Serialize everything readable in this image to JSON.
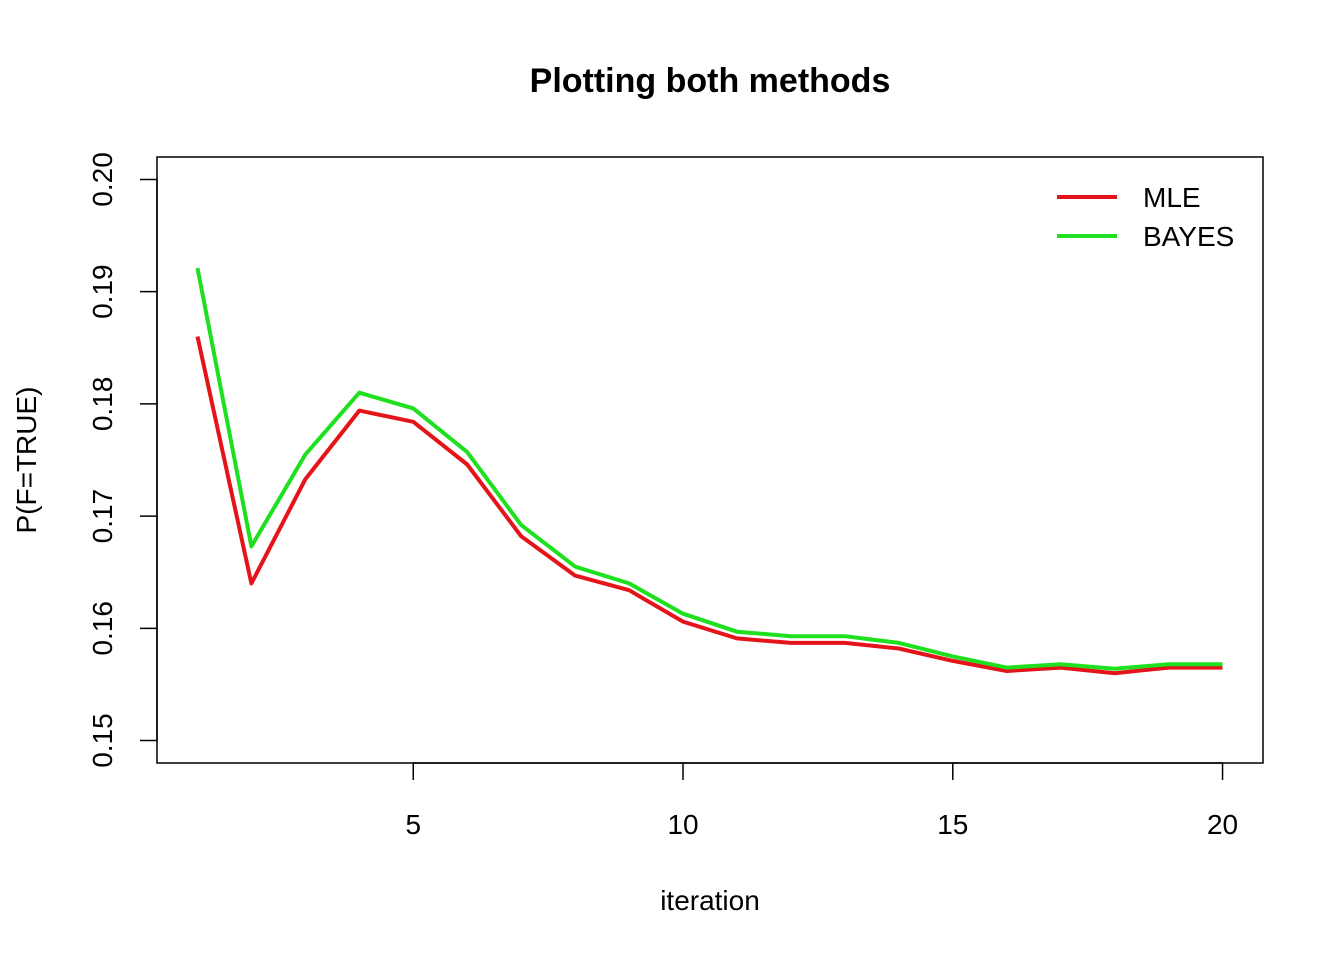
{
  "chart_data": {
    "type": "line",
    "title": "Plotting both methods",
    "xlabel": "iteration",
    "ylabel": "P(F=TRUE)",
    "xlim": [
      0.25,
      20.75
    ],
    "ylim": [
      0.148,
      0.202
    ],
    "x_ticks": [
      5,
      10,
      15,
      20
    ],
    "y_ticks": [
      0.15,
      0.16,
      0.17,
      0.18,
      0.19,
      0.2
    ],
    "x_tick_labels": [
      "5",
      "10",
      "15",
      "20"
    ],
    "y_tick_labels": [
      "0.15",
      "0.16",
      "0.17",
      "0.18",
      "0.19",
      "0.20"
    ],
    "x": [
      1,
      2,
      3,
      4,
      5,
      6,
      7,
      8,
      9,
      10,
      11,
      12,
      13,
      14,
      15,
      16,
      17,
      18,
      19,
      20
    ],
    "series": [
      {
        "name": "MLE",
        "color": "#e5141b",
        "values": [
          0.186,
          0.164,
          0.1733,
          0.1794,
          0.1784,
          0.1746,
          0.1682,
          0.1647,
          0.1634,
          0.1606,
          0.1591,
          0.1587,
          0.1587,
          0.1582,
          0.1571,
          0.1562,
          0.1565,
          0.156,
          0.1565,
          0.1565
        ]
      },
      {
        "name": "BAYES",
        "color": "#1ee01e",
        "values": [
          0.1921,
          0.1673,
          0.1755,
          0.181,
          0.1796,
          0.1757,
          0.1692,
          0.1655,
          0.164,
          0.1613,
          0.1597,
          0.1593,
          0.1593,
          0.1587,
          0.1575,
          0.1565,
          0.1568,
          0.1564,
          0.1568,
          0.1568
        ]
      }
    ],
    "grid": false,
    "legend_position": "top-right"
  }
}
